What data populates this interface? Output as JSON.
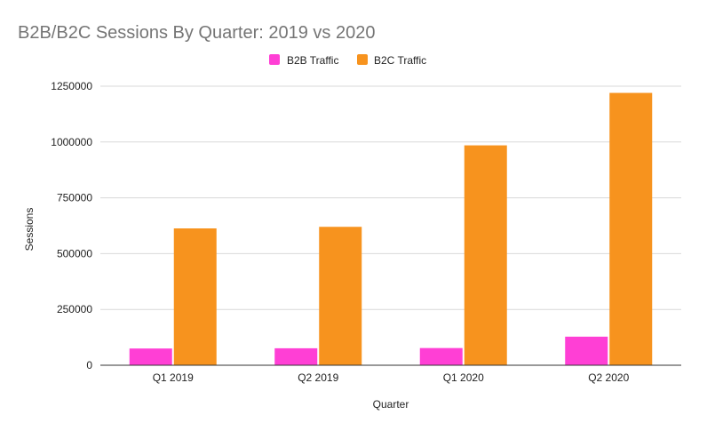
{
  "chart_data": {
    "type": "bar",
    "title": "B2B/B2C Sessions By Quarter: 2019 vs 2020",
    "xlabel": "Quarter",
    "ylabel": "Sessions",
    "categories": [
      "Q1 2019",
      "Q2 2019",
      "Q1 2020",
      "Q2 2020"
    ],
    "series": [
      {
        "name": "B2B Traffic",
        "color": "#ff3fd5",
        "values": [
          75000,
          76000,
          77000,
          128000
        ]
      },
      {
        "name": "B2C Traffic",
        "color": "#f7931e",
        "values": [
          613000,
          620000,
          985000,
          1220000
        ]
      }
    ],
    "ylim": [
      0,
      1250000
    ],
    "yticks": [
      {
        "value": 0,
        "label": "0"
      },
      {
        "value": 250000,
        "label": "250000"
      },
      {
        "value": 500000,
        "label": "500000"
      },
      {
        "value": 750000,
        "label": "750000"
      },
      {
        "value": 1000000,
        "label": "1000000"
      },
      {
        "value": 1250000,
        "label": "1250000"
      }
    ],
    "grid": true,
    "legend_position": "top-center"
  }
}
